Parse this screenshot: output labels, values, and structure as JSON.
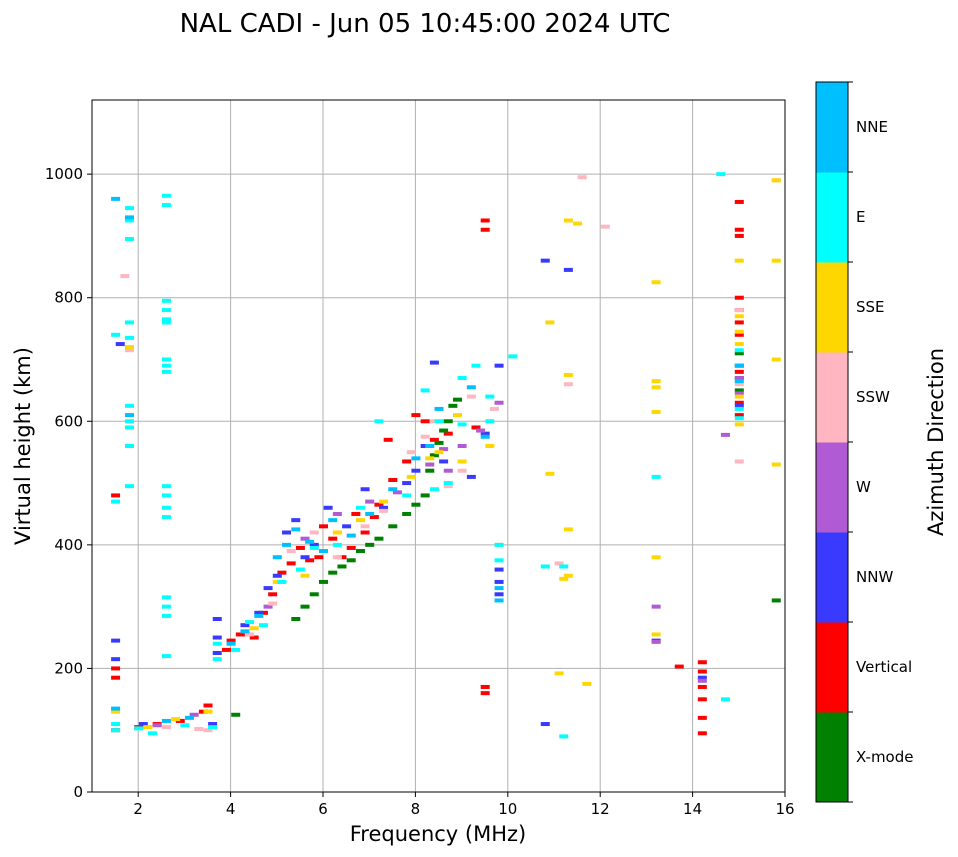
{
  "chart_data": {
    "type": "scatter",
    "title": "NAL CADI - Jun 05 10:45:00 2024 UTC",
    "xlabel": "Frequency (MHz)",
    "ylabel": "Virtual height (km)",
    "xlim": [
      1,
      16
    ],
    "ylim": [
      0,
      1120
    ],
    "xticks": [
      2,
      4,
      6,
      8,
      10,
      12,
      14,
      16
    ],
    "yticks": [
      0,
      200,
      400,
      600,
      800,
      1000
    ],
    "grid": true,
    "colorbar": {
      "label": "Azimuth Direction",
      "categories": [
        "X-mode",
        "Vertical",
        "NNW",
        "W",
        "SSW",
        "SSE",
        "E",
        "NNE"
      ],
      "colors": {
        "X-mode": "#008000",
        "Vertical": "#ff0000",
        "NNW": "#3a3aff",
        "W": "#b05ad4",
        "SSW": "#ffb6c1",
        "SSE": "#ffd700",
        "E": "#00ffff",
        "NNE": "#00bfff"
      }
    },
    "series": [
      {
        "name": "Vertical",
        "points": [
          [
            1.5,
            480
          ],
          [
            1.5,
            200
          ],
          [
            1.5,
            185
          ],
          [
            1.5,
            100
          ],
          [
            2.0,
            105
          ],
          [
            2.4,
            110
          ],
          [
            2.9,
            115
          ],
          [
            3.4,
            130
          ],
          [
            3.5,
            140
          ],
          [
            3.9,
            230
          ],
          [
            4.0,
            245
          ],
          [
            4.2,
            255
          ],
          [
            4.5,
            250
          ],
          [
            4.7,
            290
          ],
          [
            4.9,
            320
          ],
          [
            5.1,
            355
          ],
          [
            5.3,
            370
          ],
          [
            5.5,
            395
          ],
          [
            5.7,
            375
          ],
          [
            5.9,
            380
          ],
          [
            6.0,
            430
          ],
          [
            6.2,
            410
          ],
          [
            6.4,
            380
          ],
          [
            6.6,
            395
          ],
          [
            6.7,
            450
          ],
          [
            6.9,
            420
          ],
          [
            7.1,
            445
          ],
          [
            7.2,
            465
          ],
          [
            7.4,
            570
          ],
          [
            7.5,
            505
          ],
          [
            7.8,
            535
          ],
          [
            8.0,
            610
          ],
          [
            8.2,
            600
          ],
          [
            8.4,
            570
          ],
          [
            8.7,
            580
          ],
          [
            9.3,
            590
          ],
          [
            9.5,
            925
          ],
          [
            9.5,
            910
          ],
          [
            9.5,
            170
          ],
          [
            9.5,
            160
          ],
          [
            13.7,
            203
          ],
          [
            14.2,
            210
          ],
          [
            14.2,
            195
          ],
          [
            14.2,
            170
          ],
          [
            14.2,
            150
          ],
          [
            14.2,
            120
          ],
          [
            14.2,
            95
          ],
          [
            15.0,
            955
          ],
          [
            15.0,
            910
          ],
          [
            15.0,
            900
          ],
          [
            15.0,
            800
          ],
          [
            15.0,
            780
          ],
          [
            15.0,
            760
          ],
          [
            15.0,
            740
          ],
          [
            15.0,
            680
          ],
          [
            15.0,
            630
          ],
          [
            15.0,
            610
          ]
        ]
      },
      {
        "name": "X-mode",
        "points": [
          [
            4.1,
            125
          ],
          [
            5.4,
            280
          ],
          [
            5.6,
            300
          ],
          [
            5.8,
            320
          ],
          [
            6.0,
            340
          ],
          [
            6.2,
            355
          ],
          [
            6.4,
            365
          ],
          [
            6.6,
            375
          ],
          [
            6.8,
            390
          ],
          [
            7.0,
            400
          ],
          [
            7.2,
            410
          ],
          [
            7.5,
            430
          ],
          [
            7.8,
            450
          ],
          [
            8.0,
            465
          ],
          [
            8.2,
            480
          ],
          [
            8.3,
            520
          ],
          [
            8.4,
            545
          ],
          [
            8.5,
            565
          ],
          [
            8.6,
            585
          ],
          [
            8.7,
            600
          ],
          [
            8.8,
            625
          ],
          [
            8.9,
            635
          ],
          [
            15.0,
            710
          ],
          [
            15.0,
            690
          ],
          [
            15.0,
            670
          ],
          [
            15.0,
            650
          ],
          [
            15.8,
            310
          ]
        ]
      },
      {
        "name": "NNW",
        "points": [
          [
            1.5,
            245
          ],
          [
            1.5,
            215
          ],
          [
            1.6,
            725
          ],
          [
            2.1,
            110
          ],
          [
            3.6,
            110
          ],
          [
            3.7,
            280
          ],
          [
            3.7,
            250
          ],
          [
            3.7,
            225
          ],
          [
            4.3,
            270
          ],
          [
            4.6,
            290
          ],
          [
            4.8,
            330
          ],
          [
            5.0,
            350
          ],
          [
            5.2,
            420
          ],
          [
            5.4,
            440
          ],
          [
            5.6,
            380
          ],
          [
            5.8,
            400
          ],
          [
            6.1,
            460
          ],
          [
            6.5,
            430
          ],
          [
            6.9,
            490
          ],
          [
            7.3,
            460
          ],
          [
            7.8,
            500
          ],
          [
            8.0,
            520
          ],
          [
            8.2,
            560
          ],
          [
            8.4,
            695
          ],
          [
            8.6,
            535
          ],
          [
            9.2,
            510
          ],
          [
            9.5,
            580
          ],
          [
            9.8,
            690
          ],
          [
            9.8,
            360
          ],
          [
            9.8,
            340
          ],
          [
            9.8,
            320
          ],
          [
            10.8,
            860
          ],
          [
            10.8,
            110
          ],
          [
            11.3,
            845
          ],
          [
            13.2,
            245
          ],
          [
            14.2,
            185
          ],
          [
            15.0,
            625
          ]
        ]
      },
      {
        "name": "W",
        "points": [
          [
            2.4,
            108
          ],
          [
            3.2,
            125
          ],
          [
            4.8,
            300
          ],
          [
            5.6,
            410
          ],
          [
            6.3,
            450
          ],
          [
            7.0,
            470
          ],
          [
            7.6,
            485
          ],
          [
            8.3,
            530
          ],
          [
            8.6,
            555
          ],
          [
            8.7,
            520
          ],
          [
            9.0,
            560
          ],
          [
            9.4,
            585
          ],
          [
            9.8,
            630
          ],
          [
            13.2,
            300
          ],
          [
            13.2,
            243
          ],
          [
            14.2,
            180
          ],
          [
            14.7,
            578
          ],
          [
            15.0,
            670
          ],
          [
            15.0,
            645
          ]
        ]
      },
      {
        "name": "SSW",
        "points": [
          [
            1.7,
            835
          ],
          [
            1.8,
            715
          ],
          [
            2.6,
            105
          ],
          [
            3.3,
            102
          ],
          [
            3.5,
            100
          ],
          [
            4.4,
            255
          ],
          [
            4.9,
            305
          ],
          [
            5.3,
            390
          ],
          [
            5.8,
            420
          ],
          [
            6.3,
            380
          ],
          [
            6.9,
            430
          ],
          [
            7.3,
            455
          ],
          [
            7.9,
            550
          ],
          [
            8.2,
            575
          ],
          [
            8.4,
            600
          ],
          [
            8.7,
            495
          ],
          [
            9.0,
            520
          ],
          [
            9.2,
            640
          ],
          [
            9.7,
            620
          ],
          [
            11.1,
            370
          ],
          [
            11.3,
            660
          ],
          [
            11.6,
            995
          ],
          [
            12.1,
            915
          ],
          [
            15.0,
            780
          ],
          [
            15.0,
            660
          ],
          [
            15.0,
            535
          ],
          [
            15.8,
            990
          ]
        ]
      },
      {
        "name": "SSE",
        "points": [
          [
            1.5,
            130
          ],
          [
            1.8,
            720
          ],
          [
            2.2,
            105
          ],
          [
            2.8,
            118
          ],
          [
            3.5,
            130
          ],
          [
            4.5,
            265
          ],
          [
            5.0,
            340
          ],
          [
            5.6,
            350
          ],
          [
            6.3,
            420
          ],
          [
            6.8,
            440
          ],
          [
            7.3,
            470
          ],
          [
            7.9,
            510
          ],
          [
            8.3,
            540
          ],
          [
            8.5,
            550
          ],
          [
            8.9,
            610
          ],
          [
            9.0,
            535
          ],
          [
            9.6,
            560
          ],
          [
            9.8,
            400
          ],
          [
            10.9,
            760
          ],
          [
            10.9,
            515
          ],
          [
            11.2,
            345
          ],
          [
            11.3,
            925
          ],
          [
            11.3,
            675
          ],
          [
            11.3,
            425
          ],
          [
            11.3,
            350
          ],
          [
            11.5,
            920
          ],
          [
            11.7,
            175
          ],
          [
            11.1,
            192
          ],
          [
            13.2,
            825
          ],
          [
            13.2,
            665
          ],
          [
            13.2,
            655
          ],
          [
            13.2,
            615
          ],
          [
            13.2,
            380
          ],
          [
            13.2,
            255
          ],
          [
            15.0,
            860
          ],
          [
            15.0,
            770
          ],
          [
            15.0,
            745
          ],
          [
            15.0,
            725
          ],
          [
            15.0,
            640
          ],
          [
            15.0,
            595
          ],
          [
            15.8,
            990
          ],
          [
            15.8,
            860
          ],
          [
            15.8,
            700
          ],
          [
            15.8,
            530
          ]
        ]
      },
      {
        "name": "E",
        "points": [
          [
            1.5,
            740
          ],
          [
            1.5,
            470
          ],
          [
            1.5,
            110
          ],
          [
            1.5,
            100
          ],
          [
            1.8,
            945
          ],
          [
            1.8,
            925
          ],
          [
            1.8,
            895
          ],
          [
            1.8,
            760
          ],
          [
            1.8,
            735
          ],
          [
            1.8,
            625
          ],
          [
            1.8,
            600
          ],
          [
            1.8,
            590
          ],
          [
            1.8,
            560
          ],
          [
            1.8,
            495
          ],
          [
            2.6,
            965
          ],
          [
            2.6,
            950
          ],
          [
            2.6,
            795
          ],
          [
            2.6,
            780
          ],
          [
            2.6,
            765
          ],
          [
            2.6,
            760
          ],
          [
            2.6,
            700
          ],
          [
            2.6,
            690
          ],
          [
            2.6,
            680
          ],
          [
            2.6,
            495
          ],
          [
            2.6,
            480
          ],
          [
            2.6,
            460
          ],
          [
            2.6,
            445
          ],
          [
            2.6,
            315
          ],
          [
            2.6,
            300
          ],
          [
            2.6,
            285
          ],
          [
            2.6,
            220
          ],
          [
            2.3,
            95
          ],
          [
            2.0,
            103
          ],
          [
            3.0,
            108
          ],
          [
            3.6,
            105
          ],
          [
            3.7,
            240
          ],
          [
            3.7,
            215
          ],
          [
            4.1,
            230
          ],
          [
            4.4,
            275
          ],
          [
            4.7,
            270
          ],
          [
            5.1,
            340
          ],
          [
            5.5,
            360
          ],
          [
            5.8,
            395
          ],
          [
            6.3,
            400
          ],
          [
            6.8,
            460
          ],
          [
            7.2,
            600
          ],
          [
            7.8,
            480
          ],
          [
            8.2,
            650
          ],
          [
            8.4,
            490
          ],
          [
            8.5,
            600
          ],
          [
            8.7,
            500
          ],
          [
            9.0,
            670
          ],
          [
            9.0,
            595
          ],
          [
            9.3,
            690
          ],
          [
            9.6,
            640
          ],
          [
            9.6,
            600
          ],
          [
            9.8,
            400
          ],
          [
            9.8,
            375
          ],
          [
            10.1,
            705
          ],
          [
            10.8,
            365
          ],
          [
            11.2,
            365
          ],
          [
            11.2,
            90
          ],
          [
            13.2,
            510
          ],
          [
            14.6,
            1000
          ],
          [
            14.7,
            150
          ],
          [
            15.0,
            715
          ],
          [
            15.0,
            620
          ],
          [
            15.0,
            605
          ]
        ]
      },
      {
        "name": "NNE",
        "points": [
          [
            1.5,
            960
          ],
          [
            1.5,
            135
          ],
          [
            1.8,
            930
          ],
          [
            1.8,
            610
          ],
          [
            2.6,
            115
          ],
          [
            3.1,
            120
          ],
          [
            4.0,
            240
          ],
          [
            4.3,
            260
          ],
          [
            4.6,
            285
          ],
          [
            5.0,
            380
          ],
          [
            5.2,
            400
          ],
          [
            5.4,
            425
          ],
          [
            5.7,
            405
          ],
          [
            6.0,
            390
          ],
          [
            6.2,
            440
          ],
          [
            6.6,
            415
          ],
          [
            7.0,
            450
          ],
          [
            7.5,
            490
          ],
          [
            8.0,
            540
          ],
          [
            8.3,
            560
          ],
          [
            8.5,
            620
          ],
          [
            9.2,
            655
          ],
          [
            9.5,
            575
          ],
          [
            9.8,
            330
          ],
          [
            9.8,
            310
          ],
          [
            15.0,
            690
          ],
          [
            15.0,
            665
          ]
        ]
      }
    ]
  }
}
